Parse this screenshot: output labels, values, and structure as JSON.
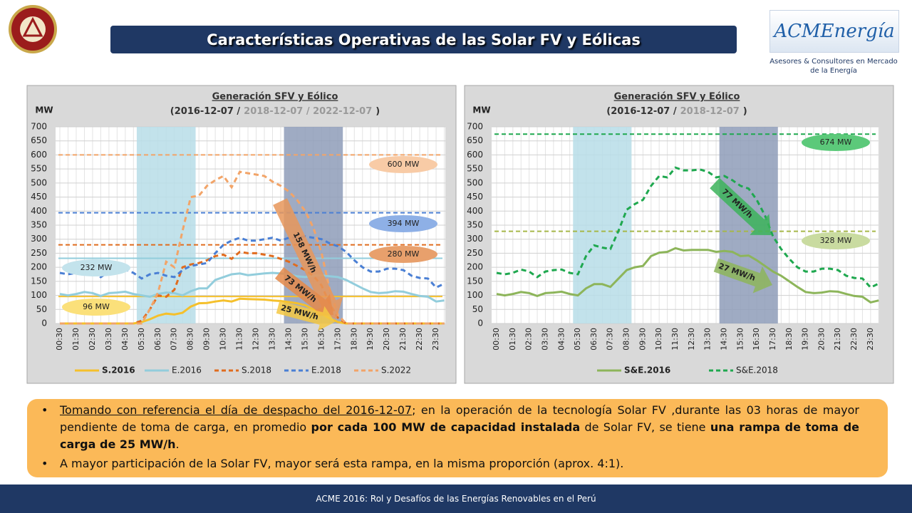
{
  "header": {
    "title": "Características Operativas de las Solar FV y Eólicas"
  },
  "logo": {
    "name": "ACMEnergía",
    "caption": [
      "Asesores & Consultores en Mercado",
      "de la Energía"
    ]
  },
  "bullets": [
    [
      "Tomando con referencia el día de despacho del 2016-12-07",
      "; en la operación de la tecnología Solar FV ,durante las 03 horas de mayor pendiente  de toma de carga, en promedio ",
      "por cada 100 MW de capacidad instalada",
      " de Solar FV, se tiene ",
      "una rampa de toma de carga de 25 MW/h",
      "."
    ],
    [
      "A mayor participación de la Solar FV, mayor será esta rampa, en la misma proporción  (aprox. 4:1)."
    ]
  ],
  "footer": "ACME 2016:  Rol y Desafíos de las Energías Renovables en el Perú",
  "chart_data": [
    {
      "type": "line",
      "title": "Generación SFV y Eólico",
      "subtitle_parts": [
        {
          "text": "(2016-12-07  /",
          "color": "#333333"
        },
        {
          "text": "2018-12-07  /  2022-12-07",
          "color": "#999999"
        },
        {
          "text": ")",
          "color": "#333333"
        }
      ],
      "y_label": "MW",
      "categories": [
        "00:30",
        null,
        "01:30",
        null,
        "02:30",
        null,
        "03:30",
        null,
        "04:30",
        null,
        "05:30",
        null,
        "06:30",
        null,
        "07:30",
        null,
        "08:30",
        null,
        "09:30",
        null,
        "10:30",
        null,
        "11:30",
        null,
        "12:30",
        null,
        "13:30",
        null,
        "14:30",
        null,
        "15:30",
        null,
        "16:30",
        null,
        "17:30",
        null,
        "18:30",
        null,
        "19:30",
        null,
        "20:30",
        null,
        "21:30",
        null,
        "22:30",
        null,
        "23:30",
        null
      ],
      "ylim": [
        0,
        700
      ],
      "yticks": [
        0,
        50,
        100,
        150,
        200,
        250,
        300,
        350,
        400,
        450,
        500,
        550,
        600,
        650,
        700
      ],
      "grid": true,
      "bands": [
        {
          "start": "05:30",
          "end": "08:30",
          "color": "#b7dde8"
        },
        {
          "start": "14:30",
          "end": "17:30",
          "color": "#8e9cb8"
        }
      ],
      "series": [
        {
          "name": "S.2016",
          "color": "#f5c02b",
          "dash": false,
          "values": [
            0,
            0,
            0,
            0,
            0,
            0,
            0,
            0,
            0,
            0,
            5,
            15,
            28,
            35,
            32,
            38,
            60,
            72,
            73,
            78,
            82,
            78,
            88,
            87,
            86,
            85,
            82,
            80,
            76,
            72,
            65,
            50,
            35,
            18,
            5,
            0,
            0,
            0,
            0,
            0,
            0,
            0,
            0,
            0,
            0,
            0,
            0,
            0
          ]
        },
        {
          "name": "E.2016",
          "color": "#92cddc",
          "dash": false,
          "values": [
            105,
            100,
            105,
            112,
            108,
            98,
            108,
            110,
            113,
            105,
            100,
            95,
            105,
            110,
            108,
            100,
            115,
            125,
            125,
            155,
            165,
            175,
            178,
            172,
            175,
            178,
            180,
            178,
            175,
            168,
            165,
            170,
            172,
            168,
            165,
            155,
            140,
            125,
            112,
            108,
            110,
            115,
            113,
            105,
            98,
            95,
            78,
            82
          ]
        },
        {
          "name": "S.2018",
          "color": "#e06c1f",
          "dash": true,
          "values": [
            0,
            0,
            0,
            0,
            0,
            0,
            0,
            0,
            0,
            0,
            10,
            50,
            100,
            95,
            120,
            200,
            210,
            215,
            225,
            240,
            245,
            230,
            255,
            250,
            250,
            245,
            240,
            230,
            220,
            205,
            190,
            170,
            135,
            70,
            20,
            0,
            0,
            0,
            0,
            0,
            0,
            0,
            0,
            0,
            0,
            0,
            0,
            0
          ]
        },
        {
          "name": "E.2018",
          "color": "#4a7fd4",
          "dash": true,
          "values": [
            180,
            175,
            180,
            192,
            185,
            165,
            185,
            190,
            192,
            180,
            160,
            175,
            180,
            170,
            165,
            190,
            205,
            210,
            215,
            250,
            280,
            295,
            305,
            295,
            295,
            300,
            305,
            295,
            305,
            305,
            310,
            305,
            300,
            285,
            275,
            255,
            225,
            200,
            185,
            185,
            195,
            195,
            190,
            170,
            162,
            160,
            128,
            142
          ]
        },
        {
          "name": "S.2022",
          "color": "#f2a468",
          "dash": true,
          "values": [
            0,
            0,
            0,
            0,
            0,
            0,
            0,
            0,
            0,
            0,
            0,
            50,
            110,
            220,
            200,
            330,
            450,
            455,
            490,
            510,
            525,
            485,
            540,
            535,
            530,
            525,
            505,
            490,
            470,
            440,
            400,
            340,
            250,
            120,
            30,
            0,
            0,
            0,
            0,
            0,
            0,
            0,
            0,
            0,
            0,
            0,
            0,
            0
          ]
        }
      ],
      "reference_lines": [
        {
          "value": 600,
          "label": "600 MW",
          "color": "#f2a468",
          "dash": true,
          "label_fill": "#f8cba6"
        },
        {
          "value": 394,
          "label": "394 MW",
          "color": "#4a7fd4",
          "dash": true,
          "label_fill": "#8eb0e6"
        },
        {
          "value": 280,
          "label": "280 MW",
          "color": "#e06c1f",
          "dash": true,
          "label_fill": "#e8a06c"
        },
        {
          "value": 232,
          "label": "232 MW",
          "color": "#92cddc",
          "dash": false,
          "label_fill": "#c3e3ec"
        },
        {
          "value": 96,
          "label": "96 MW",
          "color": "#f5c02b",
          "dash": false,
          "label_fill": "#fbe07a"
        }
      ],
      "annotations": [
        {
          "text": "158 MW/h",
          "color": "#e8965a"
        },
        {
          "text": "73 MW/h",
          "color": "#e58a4a"
        },
        {
          "text": "25 MW/h",
          "color": "#f5c842"
        }
      ]
    },
    {
      "type": "line",
      "title": "Generación SFV y Eólico",
      "subtitle_parts": [
        {
          "text": "(2016-12-07  /",
          "color": "#333333"
        },
        {
          "text": "2018-12-07",
          "color": "#999999"
        },
        {
          "text": ")",
          "color": "#333333"
        }
      ],
      "y_label": "MW",
      "categories": [
        "00:30",
        null,
        "01:30",
        null,
        "02:30",
        null,
        "03:30",
        null,
        "04:30",
        null,
        "05:30",
        null,
        "06:30",
        null,
        "07:30",
        null,
        "08:30",
        null,
        "09:30",
        null,
        "10:30",
        null,
        "11:30",
        null,
        "12:30",
        null,
        "13:30",
        null,
        "14:30",
        null,
        "15:30",
        null,
        "16:30",
        null,
        "17:30",
        null,
        "18:30",
        null,
        "19:30",
        null,
        "20:30",
        null,
        "21:30",
        null,
        "22:30",
        null,
        "23:30",
        null
      ],
      "ylim": [
        0,
        700
      ],
      "yticks": [
        0,
        50,
        100,
        150,
        200,
        250,
        300,
        350,
        400,
        450,
        500,
        550,
        600,
        650,
        700
      ],
      "grid": true,
      "bands": [
        {
          "start": "05:30",
          "end": "08:30",
          "color": "#b7dde8"
        },
        {
          "start": "14:30",
          "end": "17:30",
          "color": "#8e9cb8"
        }
      ],
      "series": [
        {
          "name": "S&E.2016",
          "color": "#8db55a",
          "dash": false,
          "values": [
            105,
            100,
            105,
            112,
            108,
            98,
            108,
            110,
            113,
            105,
            100,
            125,
            140,
            140,
            130,
            160,
            190,
            200,
            205,
            240,
            252,
            255,
            268,
            260,
            262,
            262,
            262,
            255,
            258,
            255,
            240,
            242,
            225,
            205,
            185,
            170,
            150,
            130,
            112,
            108,
            110,
            115,
            113,
            105,
            98,
            95,
            75,
            82
          ]
        },
        {
          "name": "S&E.2018",
          "color": "#1fa84f",
          "dash": true,
          "values": [
            180,
            175,
            180,
            192,
            185,
            165,
            185,
            190,
            192,
            180,
            175,
            240,
            278,
            270,
            265,
            330,
            405,
            425,
            440,
            490,
            525,
            520,
            555,
            545,
            545,
            548,
            540,
            520,
            525,
            510,
            490,
            480,
            440,
            385,
            310,
            265,
            230,
            200,
            185,
            185,
            195,
            195,
            190,
            170,
            162,
            160,
            128,
            142
          ]
        }
      ],
      "reference_lines": [
        {
          "value": 674,
          "label": "674 MW",
          "color": "#1fa84f",
          "dash": true,
          "label_fill": "#5cc97a"
        },
        {
          "value": 328,
          "label": "328 MW",
          "color": "#a6b84a",
          "dash": true,
          "label_fill": "#c9dba0"
        }
      ],
      "annotations": [
        {
          "text": "77 MW/h",
          "color": "#3cb35a"
        },
        {
          "text": "27 MW/h",
          "color": "#8db55a"
        }
      ]
    }
  ]
}
